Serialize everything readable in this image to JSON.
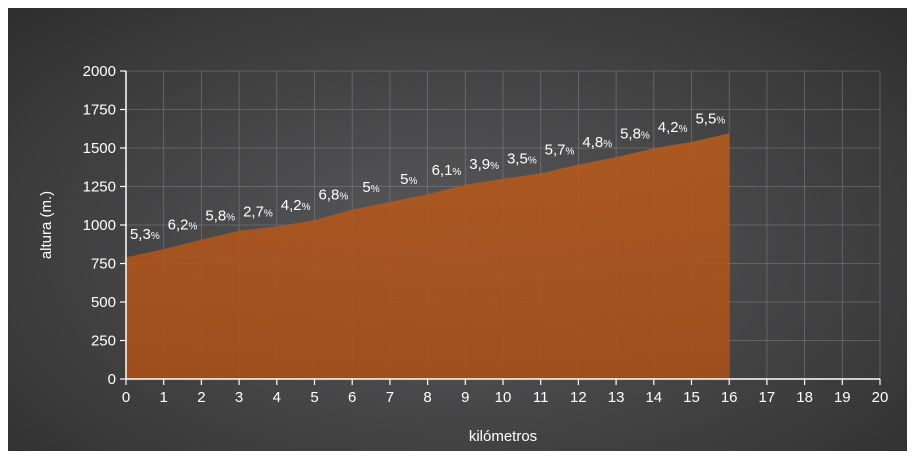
{
  "chart_data": {
    "type": "area",
    "xlabel": "kilómetros",
    "ylabel": "altura (m.)",
    "xlim": [
      0,
      20
    ],
    "ylim": [
      0,
      2000
    ],
    "x_ticks": [
      "0",
      "1",
      "2",
      "3",
      "4",
      "5",
      "6",
      "7",
      "8",
      "9",
      "10",
      "11",
      "12",
      "13",
      "14",
      "15",
      "16",
      "17",
      "18",
      "19",
      "20"
    ],
    "y_ticks": [
      "0",
      "250",
      "500",
      "750",
      "1000",
      "1250",
      "1500",
      "1750",
      "2000"
    ],
    "grid": true,
    "fill_color": "#b35a1f",
    "x": [
      0,
      1,
      2,
      3,
      4,
      5,
      6,
      7,
      8,
      9,
      10,
      11,
      12,
      13,
      14,
      15,
      16
    ],
    "y": [
      790,
      843,
      905,
      963,
      990,
      1032,
      1100,
      1150,
      1200,
      1261,
      1300,
      1335,
      1392,
      1440,
      1498,
      1540,
      1595
    ],
    "segment_grades": [
      {
        "value": "5,3",
        "unit": "%"
      },
      {
        "value": "6,2",
        "unit": "%"
      },
      {
        "value": "5,8",
        "unit": "%"
      },
      {
        "value": "2,7",
        "unit": "%"
      },
      {
        "value": "4,2",
        "unit": "%"
      },
      {
        "value": "6,8",
        "unit": "%"
      },
      {
        "value": "5",
        "unit": "%"
      },
      {
        "value": "5",
        "unit": "%"
      },
      {
        "value": "6,1",
        "unit": "%"
      },
      {
        "value": "3,9",
        "unit": "%"
      },
      {
        "value": "3,5",
        "unit": "%"
      },
      {
        "value": "5,7",
        "unit": "%"
      },
      {
        "value": "4,8",
        "unit": "%"
      },
      {
        "value": "5,8",
        "unit": "%"
      },
      {
        "value": "4,2",
        "unit": "%"
      },
      {
        "value": "5,5",
        "unit": "%"
      }
    ]
  }
}
